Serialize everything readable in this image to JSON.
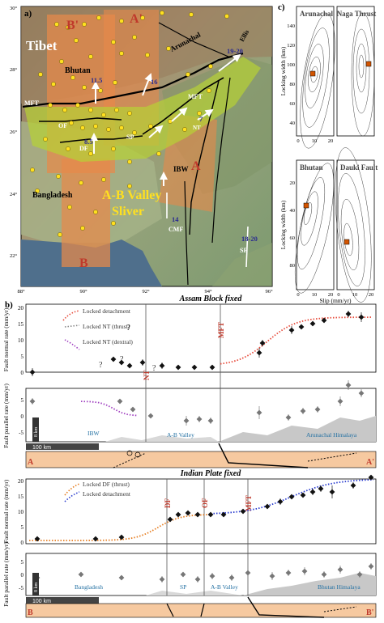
{
  "panel_a": {
    "label": "a)",
    "lon_ticks": [
      "88°",
      "90°",
      "92°",
      "94°",
      "96°"
    ],
    "lat_ticks": [
      "30°",
      "28°",
      "26°",
      "24°",
      "22°"
    ],
    "place_labels": {
      "tibet": "Tibet",
      "bhutan": "Bhutan",
      "bangladesh": "Bangladesh",
      "arunachal": "Arunachal",
      "ab_valley": "A-B Valley",
      "sliver": "Sliver",
      "ibw": "IBW",
      "cmf": "CMF",
      "sf": "SF",
      "mft": "MFT",
      "mft2": "MFT",
      "of": "OF",
      "sp": "SP",
      "df": "DF",
      "nt": "NT",
      "ellis": "Ellis"
    },
    "profile_labels": {
      "b_prime": "B'",
      "a_prime": "A'",
      "a": "A",
      "b": "B"
    },
    "rates": {
      "r1": "11.5",
      "r2": "16",
      "r3": "19-20",
      "r4": "8.5",
      "r5": "7",
      "r6": "14",
      "r7": "18-20"
    },
    "colors": {
      "profile_box": "#e8894a",
      "sliver": "#b6d234",
      "gps": "#ffe020"
    }
  },
  "panel_b": {
    "label": "b)",
    "top": {
      "title": "Assam Block fixed",
      "ylabel_normal": "Fault normal rate (mm/yr)",
      "ylabel_parallel": "Fault parallel rate (mm/yr)",
      "yticks_normal": [
        "20",
        "15",
        "10",
        "5",
        "0"
      ],
      "yticks_parallel": [
        "5",
        "0",
        "-5"
      ],
      "legend": [
        "Locked detachment",
        "Locked NT (thrust)",
        "Locked NT (dextral)"
      ],
      "question": "?",
      "fault_labels": {
        "nt": "NT",
        "mft": "MFT"
      },
      "region_labels": {
        "ibw": "IBW",
        "ab_valley": "A-B Valley",
        "arunachal": "Arunachal Himalaya"
      },
      "scale_bar": "100 km",
      "depth_bar": "8 km",
      "ends": {
        "left": "A",
        "right": "A'"
      }
    },
    "bottom": {
      "title": "Indian Plate fixed",
      "ylabel_normal": "Fault normal rate (mm/yr)",
      "ylabel_parallel": "Fault parallel rate (mm/yr)",
      "yticks_normal": [
        "20",
        "15",
        "10",
        "5",
        "0"
      ],
      "yticks_parallel": [
        "5",
        "0",
        "-5"
      ],
      "legend": [
        "Locked DF (thrust)",
        "Locked detachment"
      ],
      "fault_labels": {
        "df": "DF",
        "of": "OF",
        "mft": "MFT"
      },
      "region_labels": {
        "bangladesh": "Bangladesh",
        "sp": "SP",
        "ab_valley": "A-B Valley",
        "bhutan": "Bhutan Himalaya"
      },
      "scale_bar": "100 km",
      "depth_bar": "8 km",
      "ends": {
        "left": "B",
        "right": "B'"
      }
    }
  },
  "panel_c": {
    "label": "c)",
    "titles": {
      "arunachal": "Arunachal",
      "naga": "Naga Thrust",
      "bhutan": "Bhutan",
      "dauki": "Dauki Fault"
    },
    "ylabel": "Locking width (km)",
    "xlabel": "Slip (mm/yr)",
    "yticks_top": [
      "140",
      "120",
      "100",
      "80",
      "60",
      "40"
    ],
    "yticks_bottom": [
      "20",
      "40",
      "60",
      "80"
    ],
    "xticks": [
      "0",
      "10",
      "20"
    ]
  }
}
